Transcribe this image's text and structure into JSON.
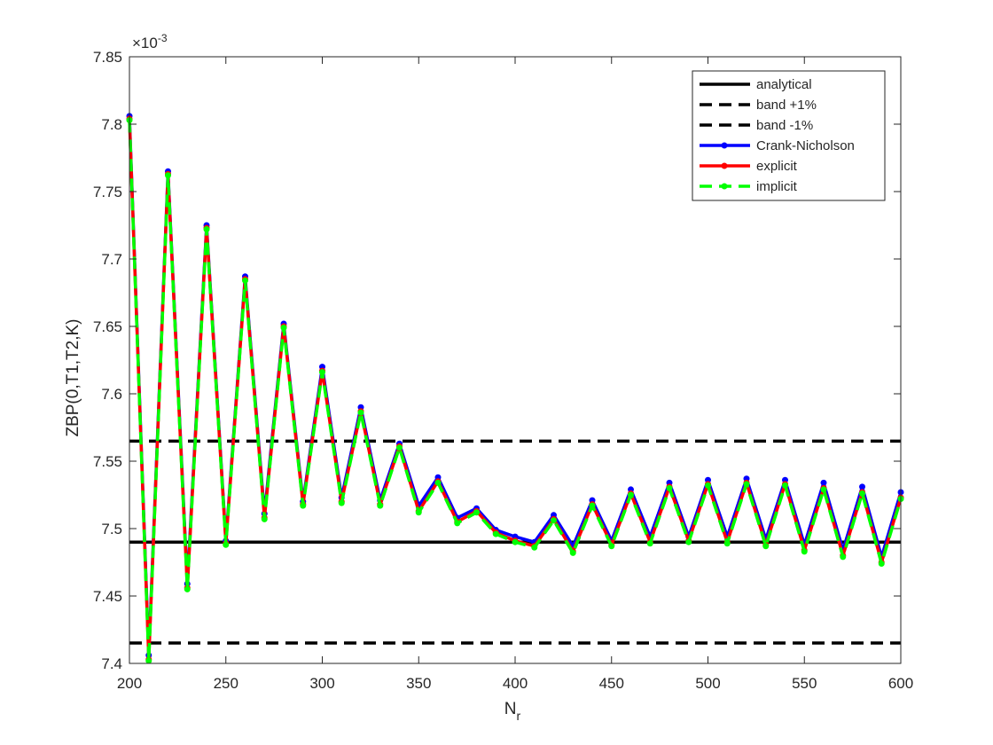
{
  "chart_data": {
    "type": "line",
    "xlabel": "N",
    "xlabel_sub": "r",
    "ylabel": "ZBP(0,T1,T2,K)",
    "xlim": [
      200,
      600
    ],
    "ylim": [
      7.4,
      7.85
    ],
    "y_exponent_label": "×10",
    "y_exponent_power": "-3",
    "x_ticks": [
      200,
      250,
      300,
      350,
      400,
      450,
      500,
      550,
      600
    ],
    "y_ticks": [
      7.4,
      7.45,
      7.5,
      7.55,
      7.6,
      7.65,
      7.7,
      7.75,
      7.8,
      7.85
    ],
    "y_tick_labels": [
      "7.4",
      "7.45",
      "7.5",
      "7.55",
      "7.6",
      "7.65",
      "7.7",
      "7.75",
      "7.8",
      "7.85"
    ],
    "legend_position": "top-right",
    "grid": false,
    "x": [
      200,
      210,
      220,
      230,
      240,
      250,
      260,
      270,
      280,
      290,
      300,
      310,
      320,
      330,
      340,
      350,
      360,
      370,
      380,
      390,
      400,
      410,
      420,
      430,
      440,
      450,
      460,
      470,
      480,
      490,
      500,
      510,
      520,
      530,
      540,
      550,
      560,
      570,
      580,
      590,
      600
    ],
    "series": [
      {
        "name": "analytical",
        "color": "#000000",
        "style": "solid",
        "markers": false,
        "constant": 7.49
      },
      {
        "name": "band +1%",
        "color": "#000000",
        "style": "dashed",
        "markers": false,
        "constant": 7.5649
      },
      {
        "name": "band -1%",
        "color": "#000000",
        "style": "dashed",
        "markers": false,
        "constant": 7.4151
      },
      {
        "name": "Crank-Nicholson",
        "color": "#0000ff",
        "style": "solid",
        "markers": true,
        "values": [
          7.806,
          7.406,
          7.765,
          7.459,
          7.725,
          7.491,
          7.687,
          7.511,
          7.652,
          7.52,
          7.62,
          7.523,
          7.59,
          7.521,
          7.563,
          7.517,
          7.538,
          7.508,
          7.515,
          7.499,
          7.494,
          7.49,
          7.51,
          7.487,
          7.521,
          7.491,
          7.529,
          7.494,
          7.534,
          7.494,
          7.536,
          7.494,
          7.537,
          7.492,
          7.536,
          7.488,
          7.534,
          7.484,
          7.531,
          7.479,
          7.527
        ]
      },
      {
        "name": "explicit",
        "color": "#ff0000",
        "style": "solid",
        "markers": true,
        "values": [
          7.804,
          7.403,
          7.763,
          7.456,
          7.723,
          7.489,
          7.685,
          7.508,
          7.65,
          7.518,
          7.617,
          7.52,
          7.587,
          7.518,
          7.561,
          7.513,
          7.535,
          7.505,
          7.513,
          7.497,
          7.491,
          7.487,
          7.507,
          7.483,
          7.518,
          7.488,
          7.526,
          7.49,
          7.531,
          7.491,
          7.533,
          7.49,
          7.534,
          7.488,
          7.533,
          7.484,
          7.53,
          7.48,
          7.527,
          7.475,
          7.523
        ]
      },
      {
        "name": "implicit",
        "color": "#00ff00",
        "style": "dashed",
        "markers": true,
        "values": [
          7.803,
          7.402,
          7.762,
          7.455,
          7.722,
          7.488,
          7.684,
          7.507,
          7.649,
          7.517,
          7.616,
          7.519,
          7.586,
          7.517,
          7.56,
          7.512,
          7.534,
          7.504,
          7.512,
          7.496,
          7.49,
          7.486,
          7.506,
          7.482,
          7.517,
          7.487,
          7.525,
          7.489,
          7.53,
          7.49,
          7.532,
          7.489,
          7.533,
          7.487,
          7.532,
          7.483,
          7.529,
          7.479,
          7.526,
          7.474,
          7.522
        ]
      }
    ]
  }
}
